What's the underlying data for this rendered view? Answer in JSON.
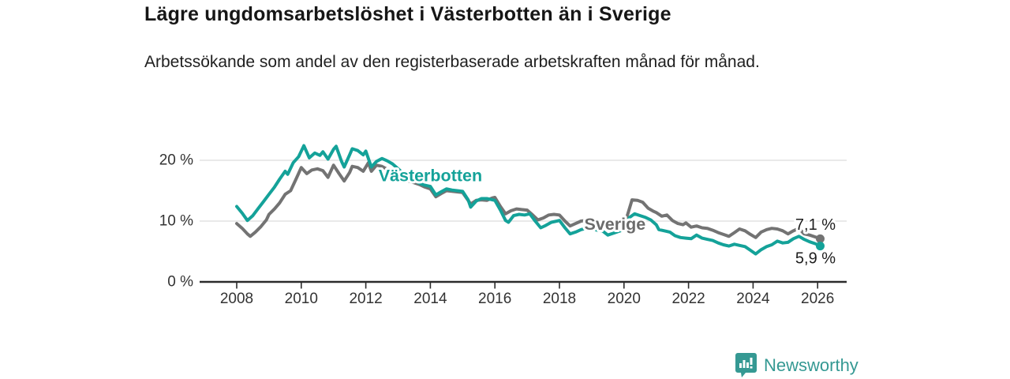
{
  "header": {
    "title": "Lägre ungdomsarbetslöshet i Västerbotten än i Sverige",
    "subtitle": "Arbetssökande som andel av den registerbaserade arbetskraften månad för månad."
  },
  "footer": {
    "brand": "Newsworthy",
    "logo_icon": "bar-chart-speech-bubble-icon"
  },
  "colors": {
    "vasterbotten_teal": "#14a299",
    "sverige_gray": "#737373",
    "sverige_label_gray": "#6b6b6b",
    "axis_line": "#2b2b2b",
    "grid_line": "#dcdcdc",
    "tick_text": "#333333",
    "end_label_text": "#1d1d1d",
    "brand_teal": "#359993",
    "background": "#ffffff"
  },
  "chart_data": {
    "type": "line",
    "unit": "%",
    "grid": true,
    "x_axis": {
      "ticks": [
        2008,
        2010,
        2012,
        2014,
        2016,
        2018,
        2020,
        2022,
        2024,
        2026
      ],
      "range": [
        2006.85,
        2026.9
      ]
    },
    "y_axis": {
      "ticks": [
        {
          "value": 0,
          "label": "0 %"
        },
        {
          "value": 10,
          "label": "10 %"
        },
        {
          "value": 20,
          "label": "20 %"
        }
      ],
      "range": [
        0,
        24
      ]
    },
    "series": [
      {
        "name": "Sverige",
        "color": "#737373",
        "label_color": "#6b6b6b",
        "label_anchor": {
          "year": 2019.72,
          "value": 9.5
        },
        "end_label": "7,1 %",
        "end_label_position": "above",
        "end_value": 7.1,
        "points": [
          [
            2008.0,
            9.6
          ],
          [
            2008.17,
            8.8
          ],
          [
            2008.33,
            7.9
          ],
          [
            2008.42,
            7.5
          ],
          [
            2008.58,
            8.2
          ],
          [
            2008.75,
            9.1
          ],
          [
            2008.92,
            10.2
          ],
          [
            2009.0,
            11.1
          ],
          [
            2009.17,
            12.0
          ],
          [
            2009.33,
            13.0
          ],
          [
            2009.5,
            14.4
          ],
          [
            2009.67,
            15.0
          ],
          [
            2009.83,
            16.8
          ],
          [
            2010.0,
            18.8
          ],
          [
            2010.17,
            17.8
          ],
          [
            2010.33,
            18.4
          ],
          [
            2010.5,
            18.6
          ],
          [
            2010.67,
            18.3
          ],
          [
            2010.83,
            17.2
          ],
          [
            2011.0,
            19.2
          ],
          [
            2011.17,
            17.8
          ],
          [
            2011.33,
            16.6
          ],
          [
            2011.5,
            18.0
          ],
          [
            2011.58,
            19.0
          ],
          [
            2011.75,
            18.8
          ],
          [
            2011.92,
            18.2
          ],
          [
            2012.08,
            19.6
          ],
          [
            2012.17,
            18.2
          ],
          [
            2012.33,
            19.2
          ],
          [
            2012.5,
            19.0
          ],
          [
            2012.67,
            18.5
          ],
          [
            2012.83,
            17.9
          ],
          [
            2013.0,
            17.5
          ],
          [
            2013.17,
            17.0
          ],
          [
            2013.33,
            16.6
          ],
          [
            2013.5,
            16.3
          ],
          [
            2013.67,
            16.0
          ],
          [
            2013.83,
            15.6
          ],
          [
            2014.0,
            15.3
          ],
          [
            2014.17,
            14.0
          ],
          [
            2014.33,
            14.5
          ],
          [
            2014.5,
            15.0
          ],
          [
            2014.67,
            14.9
          ],
          [
            2014.83,
            14.8
          ],
          [
            2015.0,
            14.7
          ],
          [
            2015.17,
            13.4
          ],
          [
            2015.25,
            12.8
          ],
          [
            2015.42,
            13.4
          ],
          [
            2015.58,
            13.5
          ],
          [
            2015.75,
            13.4
          ],
          [
            2015.92,
            13.8
          ],
          [
            2016.0,
            13.9
          ],
          [
            2016.17,
            12.4
          ],
          [
            2016.33,
            11.2
          ],
          [
            2016.5,
            11.7
          ],
          [
            2016.67,
            12.0
          ],
          [
            2016.83,
            11.9
          ],
          [
            2017.0,
            11.8
          ],
          [
            2017.17,
            11.0
          ],
          [
            2017.33,
            10.2
          ],
          [
            2017.5,
            10.5
          ],
          [
            2017.67,
            11.0
          ],
          [
            2017.83,
            11.1
          ],
          [
            2018.0,
            11.0
          ],
          [
            2018.17,
            10.0
          ],
          [
            2018.33,
            9.2
          ],
          [
            2018.5,
            9.6
          ],
          [
            2018.67,
            10.0
          ],
          [
            2018.83,
            10.1
          ],
          [
            2019.0,
            9.8
          ],
          [
            2019.17,
            9.8
          ],
          [
            2019.33,
            9.7
          ],
          [
            2019.5,
            9.0
          ],
          [
            2019.67,
            8.8
          ],
          [
            2019.83,
            9.2
          ],
          [
            2020.0,
            9.0
          ],
          [
            2020.08,
            10.5
          ],
          [
            2020.25,
            13.5
          ],
          [
            2020.42,
            13.4
          ],
          [
            2020.58,
            13.1
          ],
          [
            2020.75,
            12.1
          ],
          [
            2020.92,
            11.6
          ],
          [
            2021.0,
            11.4
          ],
          [
            2021.17,
            10.8
          ],
          [
            2021.33,
            11.0
          ],
          [
            2021.5,
            10.1
          ],
          [
            2021.67,
            9.6
          ],
          [
            2021.83,
            9.4
          ],
          [
            2021.92,
            9.7
          ],
          [
            2022.08,
            9.0
          ],
          [
            2022.25,
            9.2
          ],
          [
            2022.42,
            8.9
          ],
          [
            2022.58,
            8.8
          ],
          [
            2022.75,
            8.5
          ],
          [
            2022.92,
            8.1
          ],
          [
            2023.08,
            7.8
          ],
          [
            2023.25,
            7.5
          ],
          [
            2023.42,
            8.1
          ],
          [
            2023.58,
            8.7
          ],
          [
            2023.75,
            8.4
          ],
          [
            2023.92,
            7.8
          ],
          [
            2024.08,
            7.3
          ],
          [
            2024.25,
            8.2
          ],
          [
            2024.42,
            8.6
          ],
          [
            2024.58,
            8.8
          ],
          [
            2024.75,
            8.7
          ],
          [
            2024.92,
            8.4
          ],
          [
            2025.08,
            7.9
          ],
          [
            2025.25,
            8.4
          ],
          [
            2025.42,
            8.8
          ],
          [
            2025.58,
            7.9
          ],
          [
            2025.75,
            7.7
          ],
          [
            2025.92,
            7.4
          ],
          [
            2026.08,
            7.1
          ]
        ]
      },
      {
        "name": "Västerbotten",
        "color": "#14a299",
        "label_color": "#14a299",
        "label_anchor": {
          "year": 2014.0,
          "value": 17.5
        },
        "end_label": "5,9 %",
        "end_label_position": "below",
        "end_value": 5.9,
        "points": [
          [
            2008.0,
            12.4
          ],
          [
            2008.17,
            11.3
          ],
          [
            2008.33,
            10.1
          ],
          [
            2008.5,
            10.9
          ],
          [
            2008.67,
            12.1
          ],
          [
            2008.83,
            13.2
          ],
          [
            2009.0,
            14.4
          ],
          [
            2009.17,
            15.6
          ],
          [
            2009.33,
            16.9
          ],
          [
            2009.5,
            18.2
          ],
          [
            2009.58,
            17.7
          ],
          [
            2009.75,
            19.6
          ],
          [
            2009.92,
            20.6
          ],
          [
            2010.08,
            22.4
          ],
          [
            2010.25,
            20.4
          ],
          [
            2010.42,
            21.2
          ],
          [
            2010.58,
            20.8
          ],
          [
            2010.67,
            21.4
          ],
          [
            2010.83,
            20.2
          ],
          [
            2011.0,
            21.8
          ],
          [
            2011.08,
            22.3
          ],
          [
            2011.25,
            19.8
          ],
          [
            2011.33,
            18.9
          ],
          [
            2011.5,
            20.9
          ],
          [
            2011.58,
            21.9
          ],
          [
            2011.75,
            21.6
          ],
          [
            2011.92,
            20.9
          ],
          [
            2012.0,
            21.5
          ],
          [
            2012.17,
            18.9
          ],
          [
            2012.33,
            19.8
          ],
          [
            2012.5,
            20.3
          ],
          [
            2012.67,
            19.9
          ],
          [
            2012.83,
            19.4
          ],
          [
            2013.0,
            18.6
          ],
          [
            2013.17,
            17.8
          ],
          [
            2013.33,
            17.2
          ],
          [
            2013.5,
            16.7
          ],
          [
            2013.67,
            16.2
          ],
          [
            2013.83,
            15.9
          ],
          [
            2014.0,
            15.7
          ],
          [
            2014.17,
            14.3
          ],
          [
            2014.33,
            14.8
          ],
          [
            2014.5,
            15.3
          ],
          [
            2014.67,
            15.1
          ],
          [
            2014.83,
            15.0
          ],
          [
            2015.0,
            14.9
          ],
          [
            2015.17,
            13.5
          ],
          [
            2015.25,
            12.3
          ],
          [
            2015.42,
            13.3
          ],
          [
            2015.58,
            13.7
          ],
          [
            2015.75,
            13.7
          ],
          [
            2015.92,
            13.5
          ],
          [
            2016.0,
            13.4
          ],
          [
            2016.17,
            11.8
          ],
          [
            2016.33,
            10.1
          ],
          [
            2016.42,
            9.8
          ],
          [
            2016.58,
            10.9
          ],
          [
            2016.75,
            11.1
          ],
          [
            2016.92,
            11.0
          ],
          [
            2017.08,
            11.2
          ],
          [
            2017.25,
            10.0
          ],
          [
            2017.42,
            8.9
          ],
          [
            2017.58,
            9.3
          ],
          [
            2017.75,
            9.8
          ],
          [
            2017.92,
            10.0
          ],
          [
            2018.0,
            10.1
          ],
          [
            2018.17,
            8.9
          ],
          [
            2018.33,
            7.9
          ],
          [
            2018.5,
            8.2
          ],
          [
            2018.67,
            8.6
          ],
          [
            2018.83,
            8.8
          ],
          [
            2019.0,
            8.8
          ],
          [
            2019.17,
            8.5
          ],
          [
            2019.33,
            8.4
          ],
          [
            2019.5,
            7.7
          ],
          [
            2019.67,
            8.0
          ],
          [
            2019.83,
            8.3
          ],
          [
            2020.0,
            8.6
          ],
          [
            2020.17,
            10.6
          ],
          [
            2020.33,
            11.2
          ],
          [
            2020.5,
            10.9
          ],
          [
            2020.67,
            10.6
          ],
          [
            2020.83,
            10.2
          ],
          [
            2021.0,
            9.4
          ],
          [
            2021.08,
            8.6
          ],
          [
            2021.25,
            8.4
          ],
          [
            2021.42,
            8.2
          ],
          [
            2021.58,
            7.6
          ],
          [
            2021.75,
            7.3
          ],
          [
            2021.92,
            7.2
          ],
          [
            2022.08,
            7.1
          ],
          [
            2022.25,
            7.7
          ],
          [
            2022.42,
            7.2
          ],
          [
            2022.58,
            7.0
          ],
          [
            2022.75,
            6.8
          ],
          [
            2022.92,
            6.4
          ],
          [
            2023.08,
            6.1
          ],
          [
            2023.25,
            5.9
          ],
          [
            2023.42,
            6.2
          ],
          [
            2023.58,
            6.0
          ],
          [
            2023.75,
            5.8
          ],
          [
            2023.92,
            5.2
          ],
          [
            2024.08,
            4.6
          ],
          [
            2024.25,
            5.3
          ],
          [
            2024.42,
            5.8
          ],
          [
            2024.58,
            6.1
          ],
          [
            2024.75,
            6.7
          ],
          [
            2024.92,
            6.4
          ],
          [
            2025.08,
            6.5
          ],
          [
            2025.25,
            7.1
          ],
          [
            2025.42,
            7.5
          ],
          [
            2025.58,
            7.0
          ],
          [
            2025.75,
            6.6
          ],
          [
            2025.92,
            6.3
          ],
          [
            2026.08,
            5.9
          ]
        ]
      }
    ]
  }
}
